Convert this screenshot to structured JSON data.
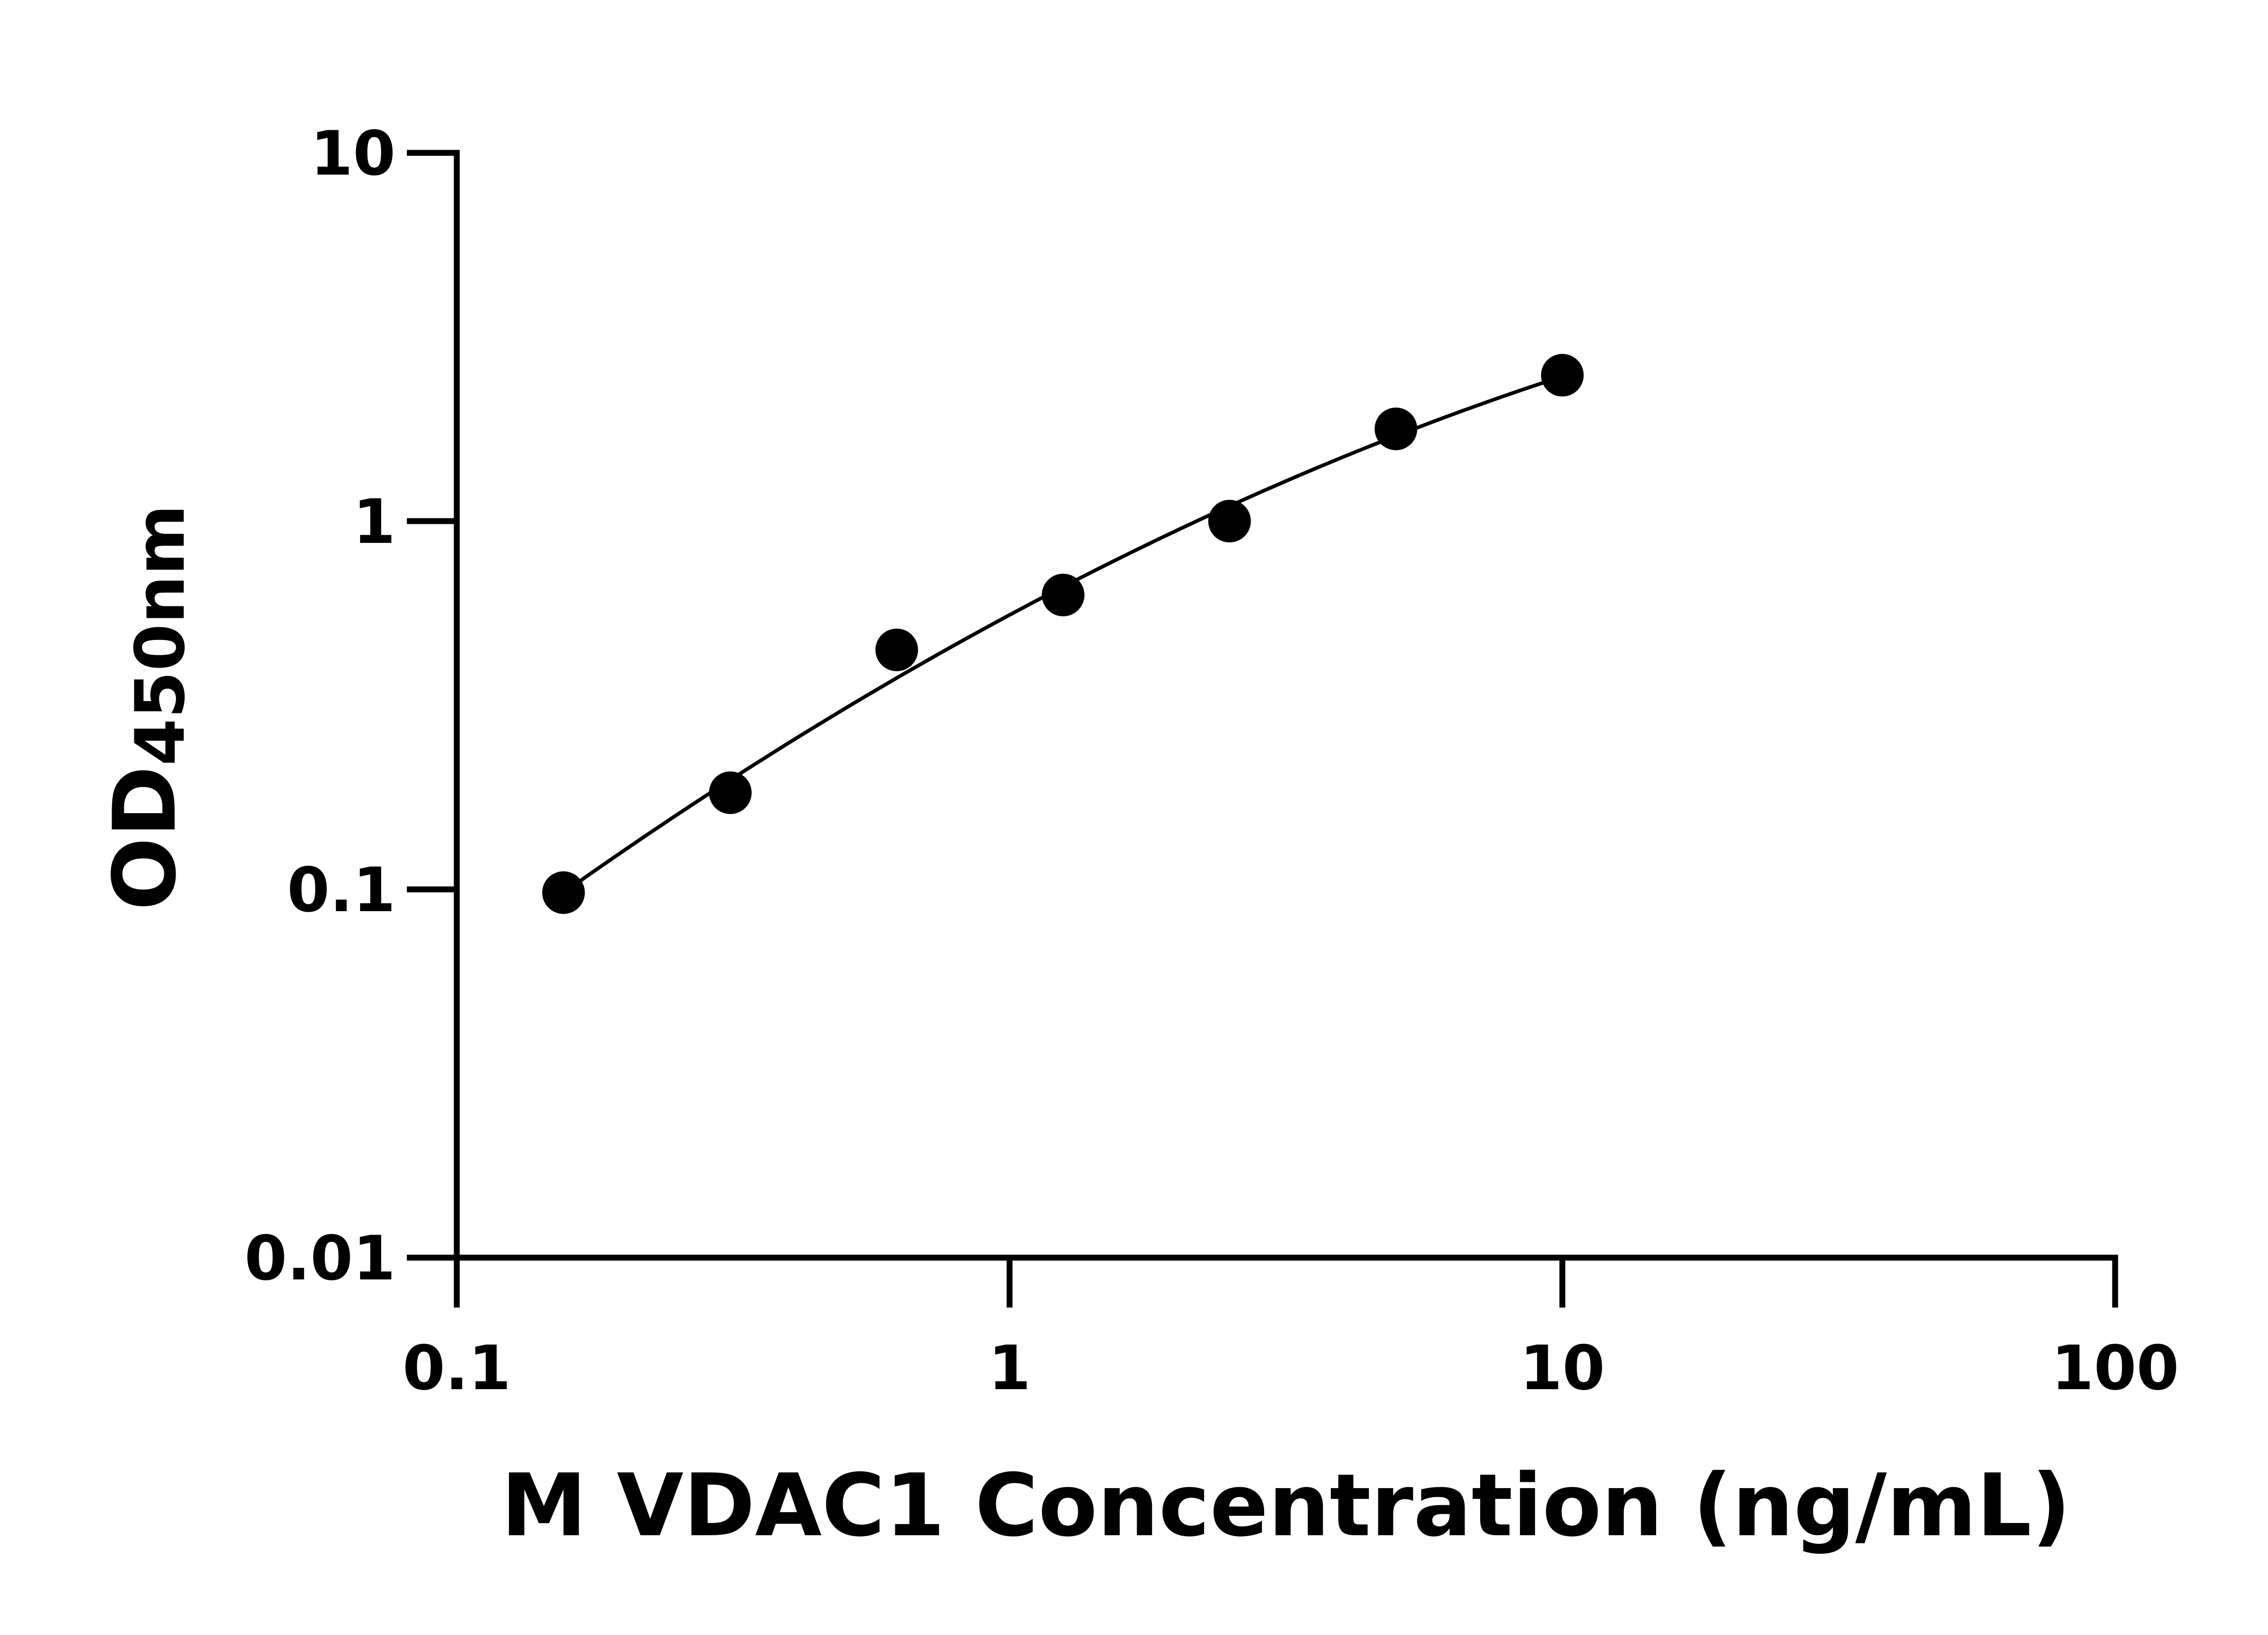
{
  "chart_data": {
    "type": "scatter",
    "title": "",
    "xlabel": "M VDAC1 Concentration (ng/mL)",
    "ylabel_main": "OD",
    "ylabel_sub": "450nm",
    "x_scale": "log",
    "y_scale": "log",
    "xlim": [
      0.1,
      100
    ],
    "ylim": [
      0.01,
      10
    ],
    "xticks": [
      0.1,
      1,
      10,
      100
    ],
    "xtick_labels": [
      "0.1",
      "1",
      "10",
      "100"
    ],
    "yticks": [
      0.01,
      0.1,
      1,
      10
    ],
    "ytick_labels": [
      "0.01",
      "0.1",
      "1",
      "10"
    ],
    "grid": false,
    "points": {
      "x": [
        0.156,
        0.3125,
        0.625,
        1.25,
        2.5,
        5,
        10
      ],
      "y": [
        0.098,
        0.183,
        0.447,
        0.63,
        1.0,
        1.78,
        2.49
      ]
    },
    "fit_curve": true,
    "colors": {
      "points": "#000000",
      "line": "#000000",
      "axes": "#000000"
    }
  }
}
